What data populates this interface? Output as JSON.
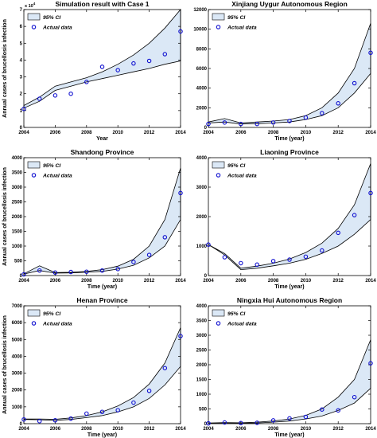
{
  "colors": {
    "band_fill": "#dbe8f6",
    "band_edge": "#000000",
    "marker": "#1010d0"
  },
  "chart_data": [
    {
      "type": "area",
      "title": "Simulation result with Case 1",
      "xlabel": "Year",
      "ylabel": "Annual cases of brucellosis infection",
      "xlim": [
        2004,
        2014
      ],
      "ylim": [
        0,
        7
      ],
      "xticks": [
        "2004",
        "2006",
        "2008",
        "2010",
        "2012",
        "2014"
      ],
      "yticks": [
        "0",
        "1",
        "2",
        "3",
        "4",
        "5",
        "6",
        "7"
      ],
      "y_exponent": "x 10",
      "y_exponent_power": "4",
      "legend": {
        "band": "95% CI",
        "points": "Actual data",
        "placement": "top-left"
      },
      "x": [
        2004,
        2005,
        2006,
        2007,
        2008,
        2009,
        2010,
        2011,
        2012,
        2013,
        2014
      ],
      "ci_lower": [
        1.15,
        1.55,
        2.2,
        2.45,
        2.7,
        2.9,
        3.1,
        3.3,
        3.5,
        3.75,
        3.95
      ],
      "ci_upper": [
        1.3,
        1.8,
        2.45,
        2.7,
        2.95,
        3.3,
        3.75,
        4.3,
        5.0,
        5.9,
        7.0
      ],
      "actual": [
        1.1,
        1.7,
        1.9,
        2.0,
        2.7,
        3.6,
        3.4,
        3.8,
        3.95,
        4.35,
        5.7
      ]
    },
    {
      "type": "area",
      "title": "Xinjiang Uygur Autonomous Region",
      "xlabel": "Time (year)",
      "ylabel": "",
      "xlim": [
        2004,
        2014
      ],
      "ylim": [
        0,
        12000
      ],
      "xticks": [
        "2004",
        "2006",
        "2008",
        "2010",
        "2012",
        "2014"
      ],
      "yticks": [
        "0",
        "2000",
        "4000",
        "6000",
        "8000",
        "10000",
        "12000"
      ],
      "legend": {
        "band": "95% CI",
        "points": "Actual data",
        "placement": "top-left"
      },
      "x": [
        2004,
        2005,
        2006,
        2007,
        2008,
        2009,
        2010,
        2011,
        2012,
        2013,
        2014
      ],
      "ci_lower": [
        450,
        550,
        350,
        380,
        450,
        550,
        800,
        1200,
        2000,
        3500,
        5500
      ],
      "ci_upper": [
        550,
        900,
        450,
        550,
        650,
        800,
        1200,
        2000,
        3500,
        6000,
        10600
      ],
      "actual": [
        350,
        500,
        350,
        350,
        500,
        650,
        1000,
        1450,
        2450,
        4500,
        7600
      ]
    },
    {
      "type": "area",
      "title": "Shandong Province",
      "xlabel": "Time (year)",
      "ylabel": "Annual cases of brucellosis infection",
      "xlim": [
        2004,
        2014
      ],
      "ylim": [
        0,
        4000
      ],
      "xticks": [
        "2004",
        "2006",
        "2008",
        "2010",
        "2012",
        "2014"
      ],
      "yticks": [
        "0",
        "500",
        "1000",
        "1500",
        "2000",
        "2500",
        "3000",
        "3500",
        "4000"
      ],
      "legend": {
        "band": "95% CI",
        "points": "Actual data",
        "placement": "top-left"
      },
      "x": [
        2004,
        2005,
        2006,
        2007,
        2008,
        2009,
        2010,
        2011,
        2012,
        2013,
        2014
      ],
      "ci_lower": [
        50,
        170,
        80,
        90,
        110,
        140,
        220,
        350,
        600,
        1000,
        1900
      ],
      "ci_upper": [
        60,
        330,
        100,
        110,
        140,
        200,
        320,
        550,
        1000,
        1900,
        3650
      ],
      "actual": [
        40,
        170,
        100,
        120,
        130,
        170,
        220,
        460,
        700,
        1300,
        2800
      ]
    },
    {
      "type": "area",
      "title": "Liaoning Province",
      "xlabel": "Time (year)",
      "ylabel": "",
      "xlim": [
        2004,
        2014
      ],
      "ylim": [
        0,
        4000
      ],
      "xticks": [
        "2004",
        "2006",
        "2008",
        "2010",
        "2012",
        "2014"
      ],
      "yticks": [
        "0",
        "1000",
        "2000",
        "3000",
        "4000"
      ],
      "legend": {
        "band": "95% CI",
        "points": "Actual data",
        "placement": "top-left"
      },
      "x": [
        2004,
        2005,
        2006,
        2007,
        2008,
        2009,
        2010,
        2011,
        2012,
        2013,
        2014
      ],
      "ci_lower": [
        1050,
        700,
        200,
        250,
        330,
        420,
        550,
        750,
        1000,
        1400,
        1900
      ],
      "ci_upper": [
        1050,
        750,
        250,
        320,
        420,
        560,
        780,
        1100,
        1600,
        2400,
        3800
      ],
      "actual": [
        1050,
        620,
        420,
        370,
        490,
        540,
        640,
        850,
        1450,
        2050,
        2800
      ]
    },
    {
      "type": "area",
      "title": "Henan Province",
      "xlabel": "Time (year)",
      "ylabel": "Annual cases of brucellosis infection",
      "xlim": [
        2004,
        2014
      ],
      "ylim": [
        0,
        7000
      ],
      "xticks": [
        "2004",
        "2006",
        "2008",
        "2010",
        "2012",
        "2014"
      ],
      "yticks": [
        "0",
        "1000",
        "2000",
        "3000",
        "4000",
        "5000",
        "6000",
        "7000"
      ],
      "legend": {
        "band": "95% CI",
        "points": "Actual data",
        "placement": "top-left"
      },
      "x": [
        2004,
        2005,
        2006,
        2007,
        2008,
        2009,
        2010,
        2011,
        2012,
        2013,
        2014
      ],
      "ci_lower": [
        250,
        230,
        200,
        250,
        360,
        480,
        700,
        1000,
        1500,
        2300,
        3400
      ],
      "ci_upper": [
        280,
        280,
        260,
        340,
        480,
        700,
        1050,
        1550,
        2350,
        3600,
        5700
      ],
      "actual": [
        250,
        150,
        200,
        300,
        600,
        700,
        800,
        1250,
        1950,
        3300,
        5200
      ]
    },
    {
      "type": "area",
      "title": "Ningxia Hui Autonomous Region",
      "xlabel": "Time (year)",
      "ylabel": "",
      "xlim": [
        2004,
        2014
      ],
      "ylim": [
        0,
        4000
      ],
      "xticks": [
        "2004",
        "2006",
        "2008",
        "2010",
        "2012",
        "2014"
      ],
      "yticks": [
        "0",
        "500",
        "1000",
        "1500",
        "2000",
        "2500",
        "3000",
        "3500",
        "4000"
      ],
      "legend": {
        "band": "95% CI",
        "points": "Actual data",
        "placement": "top-left"
      },
      "x": [
        2004,
        2005,
        2006,
        2007,
        2008,
        2009,
        2010,
        2011,
        2012,
        2013,
        2014
      ],
      "ci_lower": [
        20,
        25,
        20,
        25,
        50,
        90,
        160,
        260,
        450,
        700,
        1200
      ],
      "ci_upper": [
        25,
        35,
        30,
        50,
        90,
        160,
        280,
        500,
        900,
        1500,
        2850
      ],
      "actual": [
        10,
        40,
        20,
        30,
        110,
        180,
        230,
        480,
        450,
        900,
        2050
      ]
    }
  ]
}
